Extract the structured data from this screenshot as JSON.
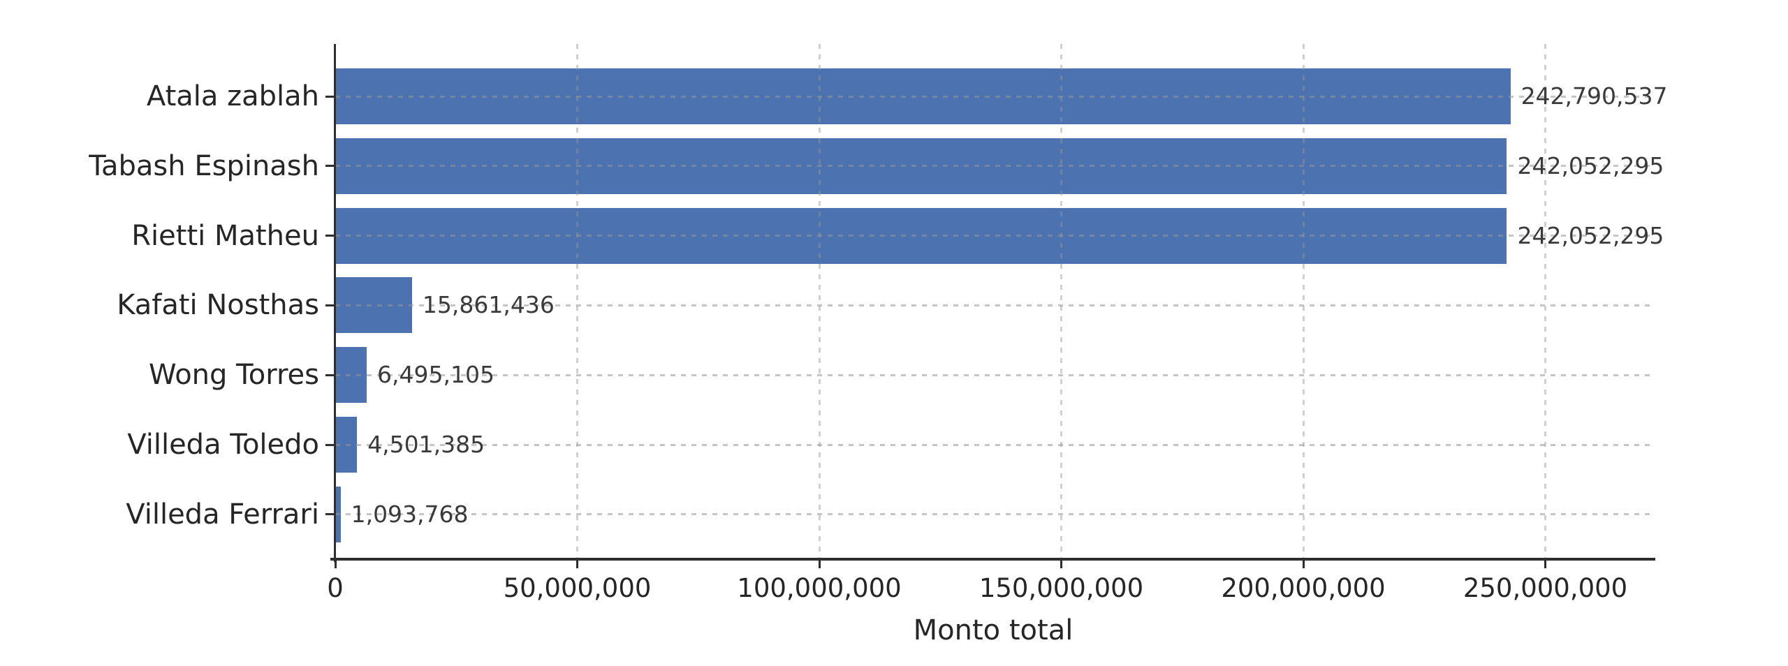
{
  "chart_data": {
    "type": "bar",
    "orientation": "horizontal",
    "title": "",
    "categories": [
      "Atala zablah",
      "Tabash Espinash",
      "Rietti Matheu",
      "Kafati Nosthas",
      "Wong Torres",
      "Villeda Toledo",
      "Villeda Ferrari"
    ],
    "values": [
      242790537,
      242052295,
      242052295,
      15861436,
      6495105,
      4501385,
      1093768
    ],
    "value_labels": [
      "242,790,537",
      "242,052,295",
      "242,052,295",
      "15,861,436",
      "6,495,105",
      "4,501,385",
      "1,093,768"
    ],
    "xlabel": "Monto total",
    "ylabel": "",
    "xlim": [
      0,
      272000000
    ],
    "xticks": [
      0,
      50000000,
      100000000,
      150000000,
      200000000,
      250000000
    ],
    "xtick_labels": [
      "0",
      "50,000,000",
      "100,000,000",
      "150,000,000",
      "200,000,000",
      "250,000,000"
    ],
    "grid": "dotted gridlines on both axes, drawn over bars",
    "legend_position": "none",
    "colors": {
      "bar": "#4c72b0",
      "grid": "#c0c0c0",
      "axis": "#2e2e2e",
      "text": "#262626"
    }
  }
}
